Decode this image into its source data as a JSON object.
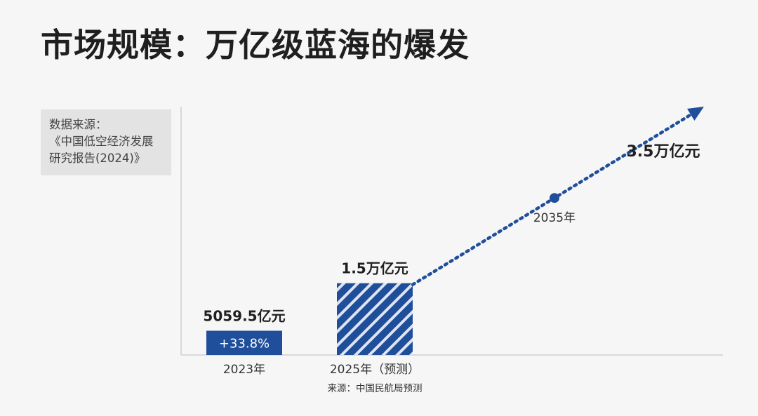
{
  "title": "市场规模：万亿级蓝海的爆发",
  "source_box": {
    "line1": "数据来源：",
    "line2": "《中国低空经济发展",
    "line3": "研究报告(2024)》"
  },
  "footnote": "来源：中国民航局预测",
  "colors": {
    "bar": "#1f4e9a",
    "arrow": "#1f4e9a",
    "axis": "#cfcfcf",
    "text": "#1f1f1f"
  },
  "chart_data": {
    "type": "bar",
    "categories": [
      "2023年",
      "2025年（预测）"
    ],
    "values": [
      5059.5,
      15000
    ],
    "unit": "亿元",
    "value_labels": [
      "5059.5亿元",
      "1.5万亿元"
    ],
    "bar_styles": [
      "solid",
      "hatched"
    ],
    "bar_inner_labels": [
      "+33.8%",
      ""
    ],
    "projection": {
      "from": "2025年（预测）",
      "point_label": "2035年",
      "value": 35000,
      "value_label": "3.5万亿元",
      "style": "dotted-arrow"
    },
    "grid": false
  }
}
